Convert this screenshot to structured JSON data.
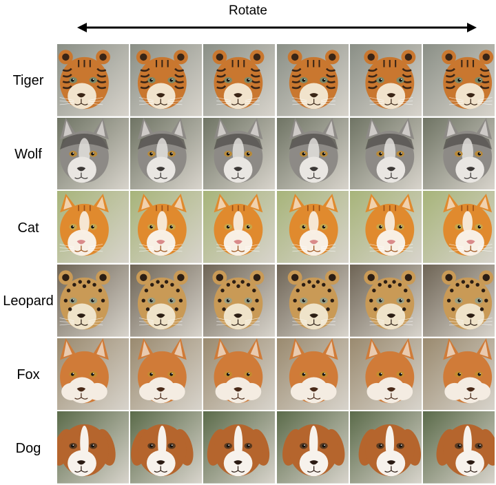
{
  "header": {
    "title": "Rotate"
  },
  "grid": {
    "columns": 6,
    "rows": [
      {
        "label": "Tiger",
        "animal": "tiger",
        "palette": {
          "fur": "#c9772f",
          "dark": "#3a2516",
          "light": "#f1e3cc",
          "bg": "#8a8f86",
          "eye": "#7b8a6a"
        }
      },
      {
        "label": "Wolf",
        "animal": "wolf",
        "palette": {
          "fur": "#8d8a86",
          "dark": "#3c3836",
          "light": "#e9e6e2",
          "bg": "#6f7464",
          "eye": "#b88a3a"
        }
      },
      {
        "label": "Cat",
        "animal": "cat",
        "palette": {
          "fur": "#e08a2e",
          "dark": "#9a4f16",
          "light": "#f8efe4",
          "bg": "#a7b47a",
          "eye": "#c7a64a"
        }
      },
      {
        "label": "Leopard",
        "animal": "leopard",
        "palette": {
          "fur": "#c99a56",
          "dark": "#2c1e14",
          "light": "#efe3c9",
          "bg": "#6e6455",
          "eye": "#9aa084"
        }
      },
      {
        "label": "Fox",
        "animal": "fox",
        "palette": {
          "fur": "#d07b38",
          "dark": "#4a2a18",
          "light": "#f4ece2",
          "bg": "#9a8a6f",
          "eye": "#c48b2f"
        }
      },
      {
        "label": "Dog",
        "animal": "dog",
        "palette": {
          "fur": "#b5652d",
          "dark": "#2a1a12",
          "light": "#f7f2ec",
          "bg": "#5b6b4a",
          "eye": "#5a3a20"
        }
      }
    ],
    "views": [
      -0.55,
      -0.25,
      -0.05,
      0.05,
      0.25,
      0.55
    ]
  }
}
